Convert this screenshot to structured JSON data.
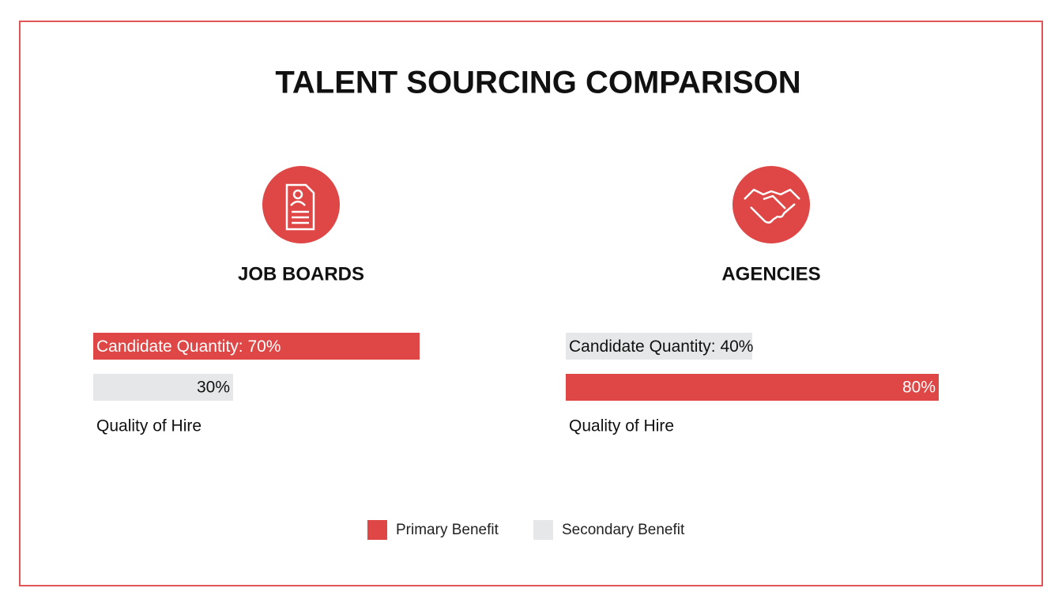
{
  "title": "TALENT SOURCING COMPARISON",
  "chart_data": [
    {
      "type": "bar",
      "title": "JOB BOARDS",
      "categories": [
        "Candidate Quantity:",
        "Quality of Hire"
      ],
      "values": [
        70,
        30
      ],
      "value_labels": [
        "70%",
        "30%"
      ],
      "colors": [
        "#df4646",
        "#e6e7e8"
      ],
      "xlim": [
        0,
        100
      ]
    },
    {
      "type": "bar",
      "title": "AGENCIES",
      "categories": [
        "Candidate Quantity:",
        "Quality of Hire"
      ],
      "values": [
        40,
        80
      ],
      "value_labels": [
        "40%",
        "80%"
      ],
      "colors": [
        "#e6e7e8",
        "#df4646"
      ],
      "xlim": [
        0,
        100
      ]
    }
  ],
  "legend": [
    {
      "name": "Primary Benefit",
      "color": "#df4646"
    },
    {
      "name": "Secondary Benefit",
      "color": "#e6e7e8"
    }
  ]
}
